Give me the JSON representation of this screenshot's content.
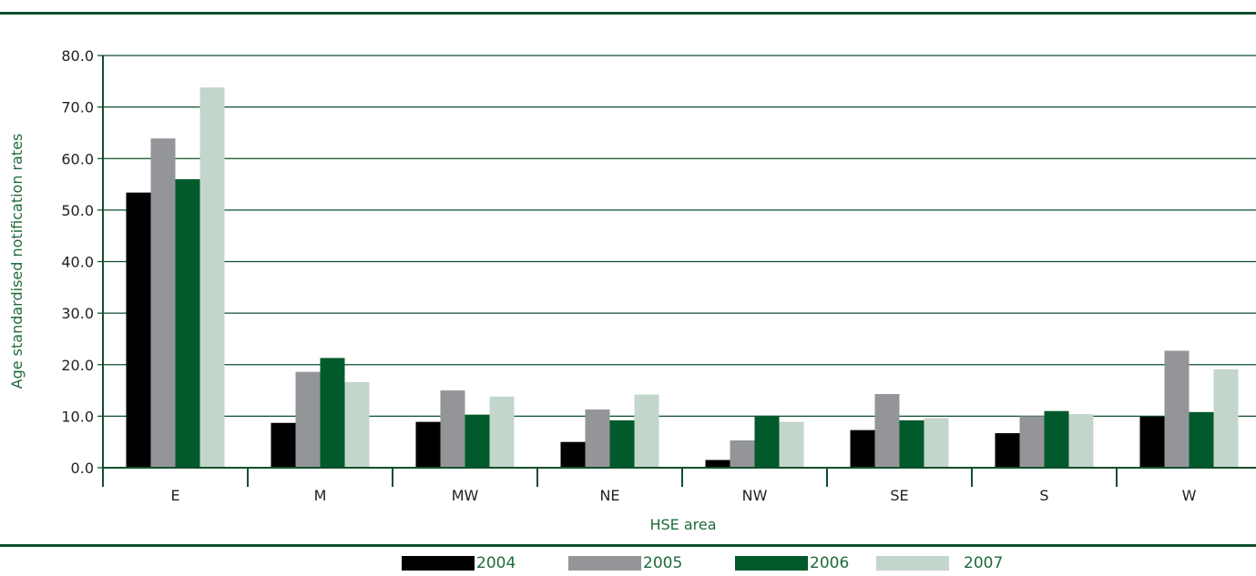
{
  "colors": {
    "rule": "#0f4f2c",
    "axis": "#0f4f2c",
    "grid": "#0f4f2c",
    "title": "#1f6b3b",
    "series": [
      "#000000",
      "#939598",
      "#005a2b",
      "#c3d6cb"
    ]
  },
  "chart_data": {
    "type": "bar",
    "title": "",
    "xlabel": "HSE area",
    "ylabel": "Age standardised notification rates",
    "ylim": [
      0,
      80
    ],
    "yticks": [
      "0.0",
      "10.0",
      "20.0",
      "30.0",
      "40.0",
      "50.0",
      "60.0",
      "70.0",
      "80.0"
    ],
    "grid": true,
    "legend_position": "bottom",
    "categories": [
      "E",
      "M",
      "MW",
      "NE",
      "NW",
      "SE",
      "S",
      "W"
    ],
    "series": [
      {
        "name": "2004",
        "values": [
          53.4,
          8.7,
          8.9,
          5.0,
          1.5,
          7.3,
          6.7,
          9.9
        ]
      },
      {
        "name": "2005",
        "values": [
          63.9,
          18.6,
          15.0,
          11.3,
          5.3,
          14.3,
          10.0,
          22.7
        ]
      },
      {
        "name": "2006",
        "values": [
          56.0,
          21.3,
          10.3,
          9.2,
          10.1,
          9.2,
          11.0,
          10.8
        ]
      },
      {
        "name": "2007",
        "values": [
          73.8,
          16.6,
          13.8,
          14.2,
          8.9,
          9.6,
          10.4,
          19.1
        ]
      }
    ]
  }
}
